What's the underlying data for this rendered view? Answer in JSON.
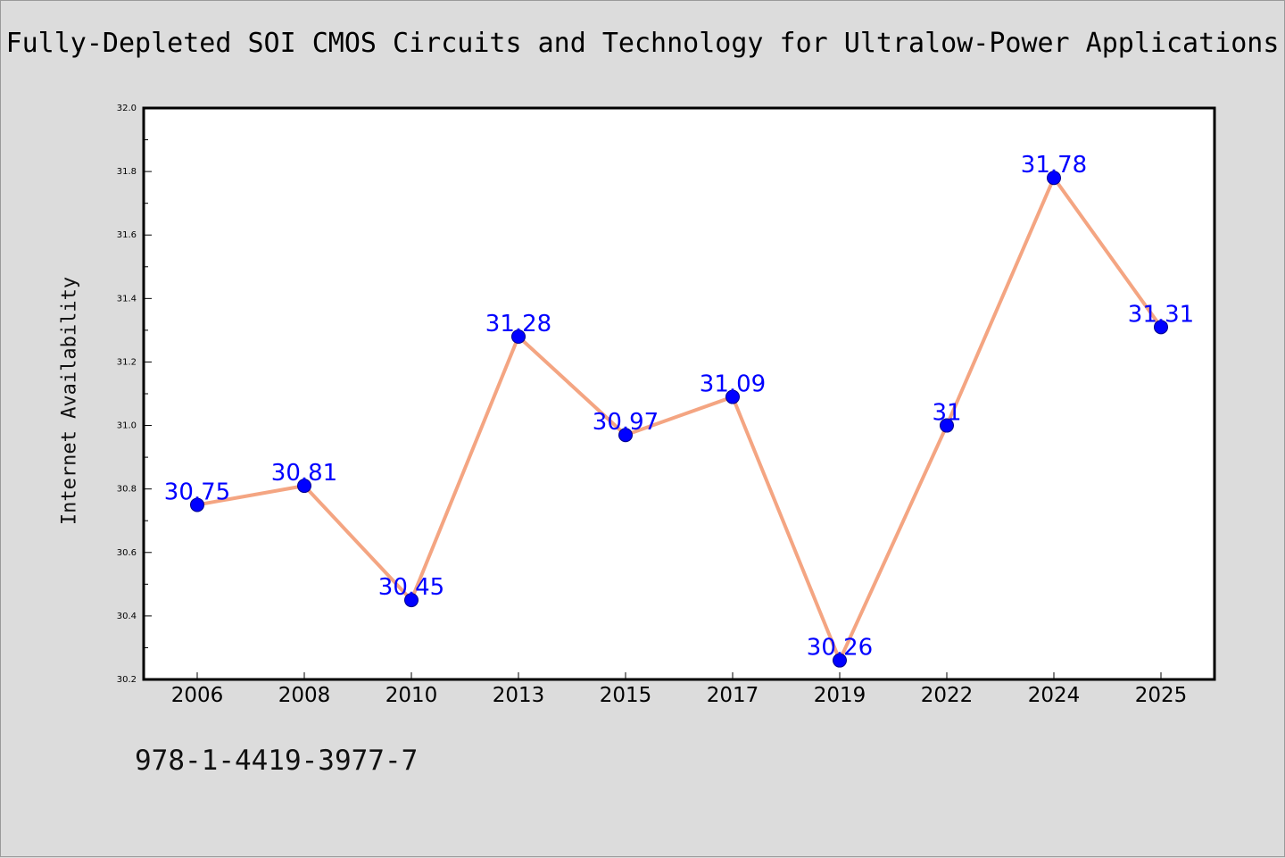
{
  "chart_data": {
    "type": "line",
    "title": "Fully-Depleted SOI CMOS Circuits and Technology for Ultralow-Power Applications",
    "xlabel": "",
    "ylabel": "Internet Availability",
    "categories": [
      "2006",
      "2008",
      "2010",
      "2013",
      "2015",
      "2017",
      "2019",
      "2022",
      "2024",
      "2025"
    ],
    "series": [
      {
        "values": [
          30.75,
          30.81,
          30.45,
          31.28,
          30.97,
          31.09,
          30.26,
          31.0,
          31.78,
          31.31
        ],
        "data_labels": [
          "30.75",
          "30.81",
          "30.45",
          "31.28",
          "30.97",
          "31.09",
          "30.26",
          "31",
          "31.78",
          "31.31"
        ],
        "line_color": "#f4a582",
        "marker_color": "#0000ff"
      }
    ],
    "ylim": [
      30.2,
      32.0
    ],
    "yticks": [
      "30.2",
      "30.4",
      "30.6",
      "30.8",
      "31.0",
      "31.2",
      "31.4",
      "31.6",
      "31.8",
      "32.0"
    ],
    "label_color": "#0000ff",
    "grid": false,
    "legend": "none"
  },
  "footer": {
    "isbn": "978-1-4419-3977-7"
  }
}
